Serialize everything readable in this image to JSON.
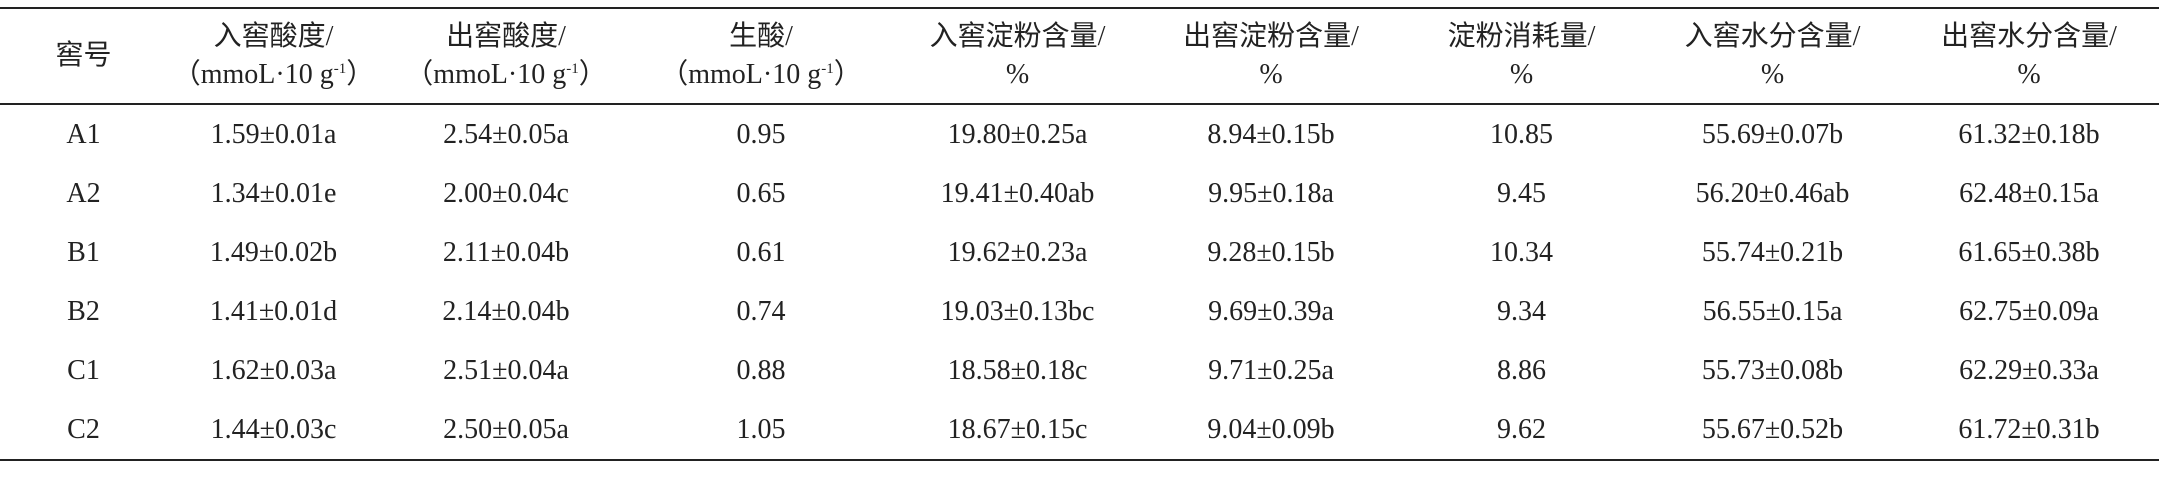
{
  "table": {
    "header": [
      {
        "name": "窖号"
      },
      {
        "name": "入窖酸度/",
        "unit": {
          "text": "（mmoL·10 g",
          "sup": "-1",
          "end": "）"
        }
      },
      {
        "name": "出窖酸度/",
        "unit": {
          "text": "（mmoL·10 g",
          "sup": "-1",
          "end": "）"
        }
      },
      {
        "name": "生酸/",
        "unit": {
          "text": "（mmoL·10 g",
          "sup": "-1",
          "end": "）"
        }
      },
      {
        "name": "入窖淀粉含量/",
        "unit": {
          "text": "%"
        }
      },
      {
        "name": "出窖淀粉含量/",
        "unit": {
          "text": "%"
        }
      },
      {
        "name": "淀粉消耗量/",
        "unit": {
          "text": "%"
        }
      },
      {
        "name": "入窖水分含量/",
        "unit": {
          "text": "%"
        }
      },
      {
        "name": "出窖水分含量/",
        "unit": {
          "text": "%"
        }
      }
    ],
    "rows": [
      [
        "A1",
        "1.59±0.01a",
        "2.54±0.05a",
        "0.95",
        "19.80±0.25a",
        "8.94±0.15b",
        "10.85",
        "55.69±0.07b",
        "61.32±0.18b"
      ],
      [
        "A2",
        "1.34±0.01e",
        "2.00±0.04c",
        "0.65",
        "19.41±0.40ab",
        "9.95±0.18a",
        "9.45",
        "56.20±0.46ab",
        "62.48±0.15a"
      ],
      [
        "B1",
        "1.49±0.02b",
        "2.11±0.04b",
        "0.61",
        "19.62±0.23a",
        "9.28±0.15b",
        "10.34",
        "55.74±0.21b",
        "61.65±0.38b"
      ],
      [
        "B2",
        "1.41±0.01d",
        "2.14±0.04b",
        "0.74",
        "19.03±0.13bc",
        "9.69±0.39a",
        "9.34",
        "56.55±0.15a",
        "62.75±0.09a"
      ],
      [
        "C1",
        "1.62±0.03a",
        "2.51±0.04a",
        "0.88",
        "18.58±0.18c",
        "9.71±0.25a",
        "8.86",
        "55.73±0.08b",
        "62.29±0.33a"
      ],
      [
        "C2",
        "1.44±0.03c",
        "2.50±0.05a",
        "1.05",
        "18.67±0.15c",
        "9.04±0.09b",
        "9.62",
        "55.67±0.52b",
        "61.72±0.31b"
      ]
    ]
  }
}
